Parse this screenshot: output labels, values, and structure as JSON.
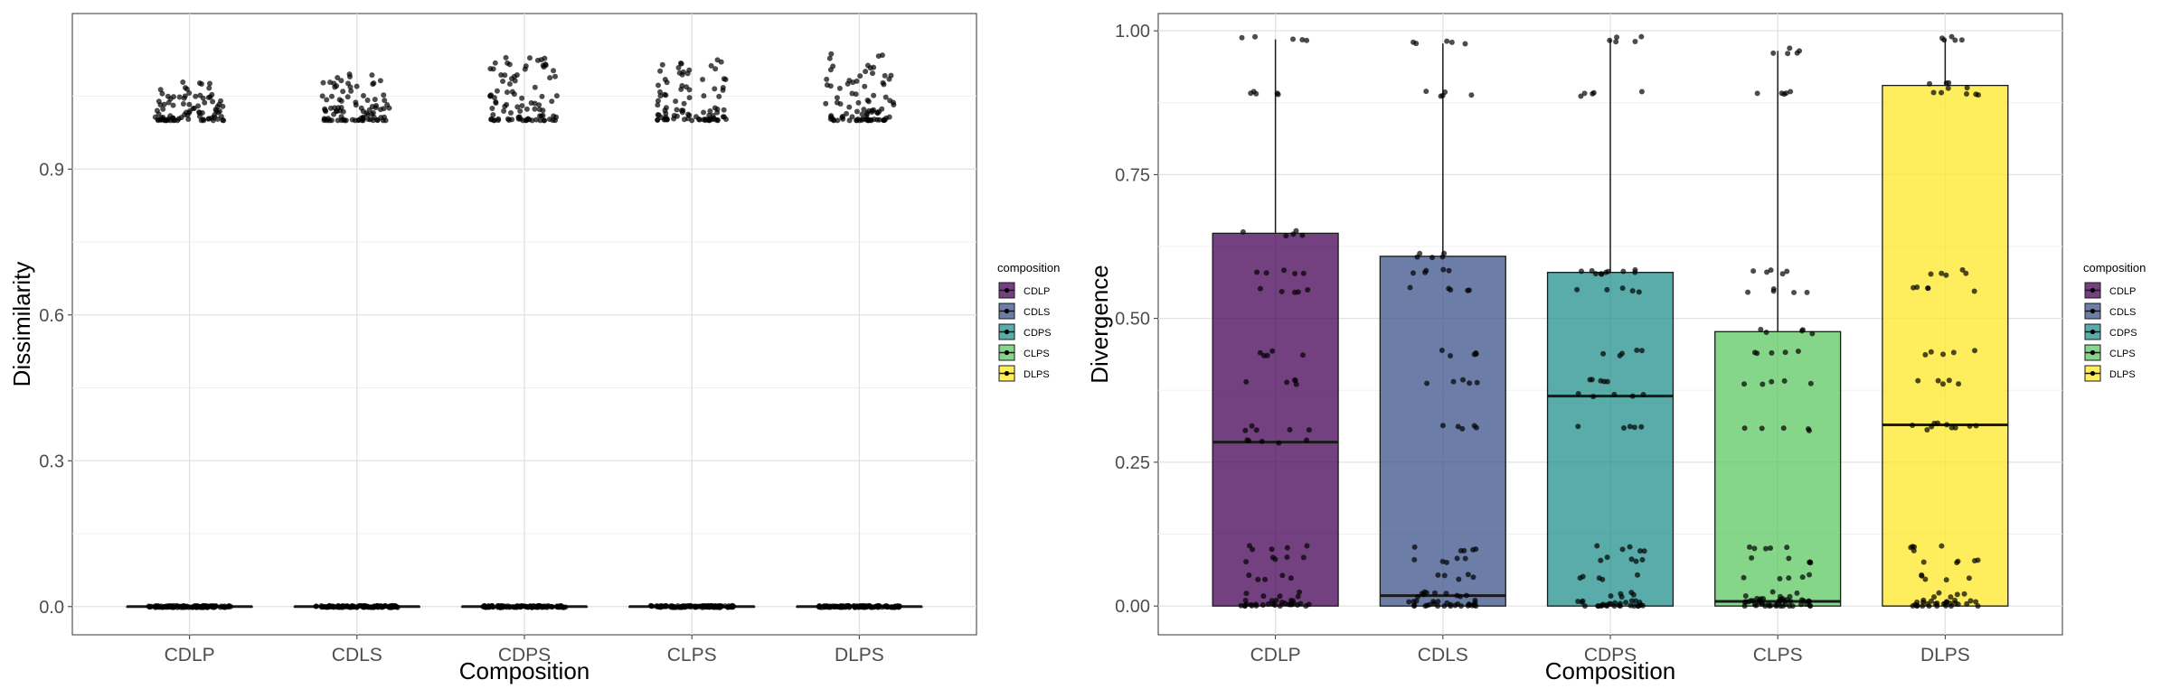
{
  "chart_data": [
    {
      "type": "box",
      "panel": "left",
      "xlabel": "Composition",
      "ylabel": "Dissimilarity",
      "categories": [
        "CDLP",
        "CDLS",
        "CDPS",
        "CLPS",
        "DLPS"
      ],
      "ylim": [
        -0.058,
        1.22
      ],
      "yticks": [
        0.0,
        0.3,
        0.6,
        0.9
      ],
      "ytick_labels": [
        "0.0",
        "0.3",
        "0.6",
        "0.9"
      ],
      "grid": true,
      "legend_position": "right",
      "legend": {
        "title": "composition",
        "items": [
          "CDLP",
          "CDLS",
          "CDPS",
          "CLPS",
          "DLPS"
        ]
      },
      "series": [
        {
          "name": "CDLP",
          "color": "#440154",
          "box": {
            "q1": 0.0,
            "median": 0.0,
            "q3": 0.0,
            "lower_whisker": 0.0,
            "upper_whisker": 0.0
          },
          "outlier_range": [
            1.0,
            1.08
          ]
        },
        {
          "name": "CDLS",
          "color": "#3B528B",
          "box": {
            "q1": 0.0,
            "median": 0.0,
            "q3": 0.0,
            "lower_whisker": 0.0,
            "upper_whisker": 0.0
          },
          "outlier_range": [
            1.0,
            1.1
          ]
        },
        {
          "name": "CDPS",
          "color": "#21908C",
          "box": {
            "q1": 0.0,
            "median": 0.0,
            "q3": 0.0,
            "lower_whisker": 0.0,
            "upper_whisker": 0.0
          },
          "outlier_range": [
            1.0,
            1.14
          ]
        },
        {
          "name": "CLPS",
          "color": "#5DC863",
          "box": {
            "q1": 0.0,
            "median": 0.0,
            "q3": 0.0,
            "lower_whisker": 0.0,
            "upper_whisker": 0.0
          },
          "outlier_range": [
            1.0,
            1.13
          ]
        },
        {
          "name": "DLPS",
          "color": "#FDE725",
          "box": {
            "q1": 0.0,
            "median": 0.0,
            "q3": 0.0,
            "lower_whisker": 0.0,
            "upper_whisker": 0.0
          },
          "outlier_range": [
            1.0,
            1.14
          ]
        }
      ]
    },
    {
      "type": "box",
      "panel": "right",
      "xlabel": "Composition",
      "ylabel": "Divergence",
      "categories": [
        "CDLP",
        "CDLS",
        "CDPS",
        "CLPS",
        "DLPS"
      ],
      "ylim": [
        -0.05,
        1.03
      ],
      "yticks": [
        0.0,
        0.25,
        0.5,
        0.75,
        1.0
      ],
      "ytick_labels": [
        "0.00",
        "0.25",
        "0.50",
        "0.75",
        "1.00"
      ],
      "grid": true,
      "legend_position": "right",
      "legend": {
        "title": "composition",
        "items": [
          "CDLP",
          "CDLS",
          "CDPS",
          "CLPS",
          "DLPS"
        ]
      },
      "series": [
        {
          "name": "CDLP",
          "color": "#440154",
          "box": {
            "q1": 0.0,
            "median": 0.285,
            "q3": 0.648,
            "lower_whisker": 0.0,
            "upper_whisker": 0.985
          }
        },
        {
          "name": "CDLS",
          "color": "#3B528B",
          "box": {
            "q1": 0.0,
            "median": 0.018,
            "q3": 0.608,
            "lower_whisker": 0.0,
            "upper_whisker": 0.978
          }
        },
        {
          "name": "CDPS",
          "color": "#21908C",
          "box": {
            "q1": 0.0,
            "median": 0.365,
            "q3": 0.58,
            "lower_whisker": 0.0,
            "upper_whisker": 0.985
          }
        },
        {
          "name": "CLPS",
          "color": "#5DC863",
          "box": {
            "q1": 0.0,
            "median": 0.008,
            "q3": 0.477,
            "lower_whisker": 0.0,
            "upper_whisker": 0.965
          }
        },
        {
          "name": "DLPS",
          "color": "#FDE725",
          "box": {
            "q1": 0.0,
            "median": 0.315,
            "q3": 0.905,
            "lower_whisker": 0.0,
            "upper_whisker": 0.985
          }
        }
      ]
    }
  ]
}
